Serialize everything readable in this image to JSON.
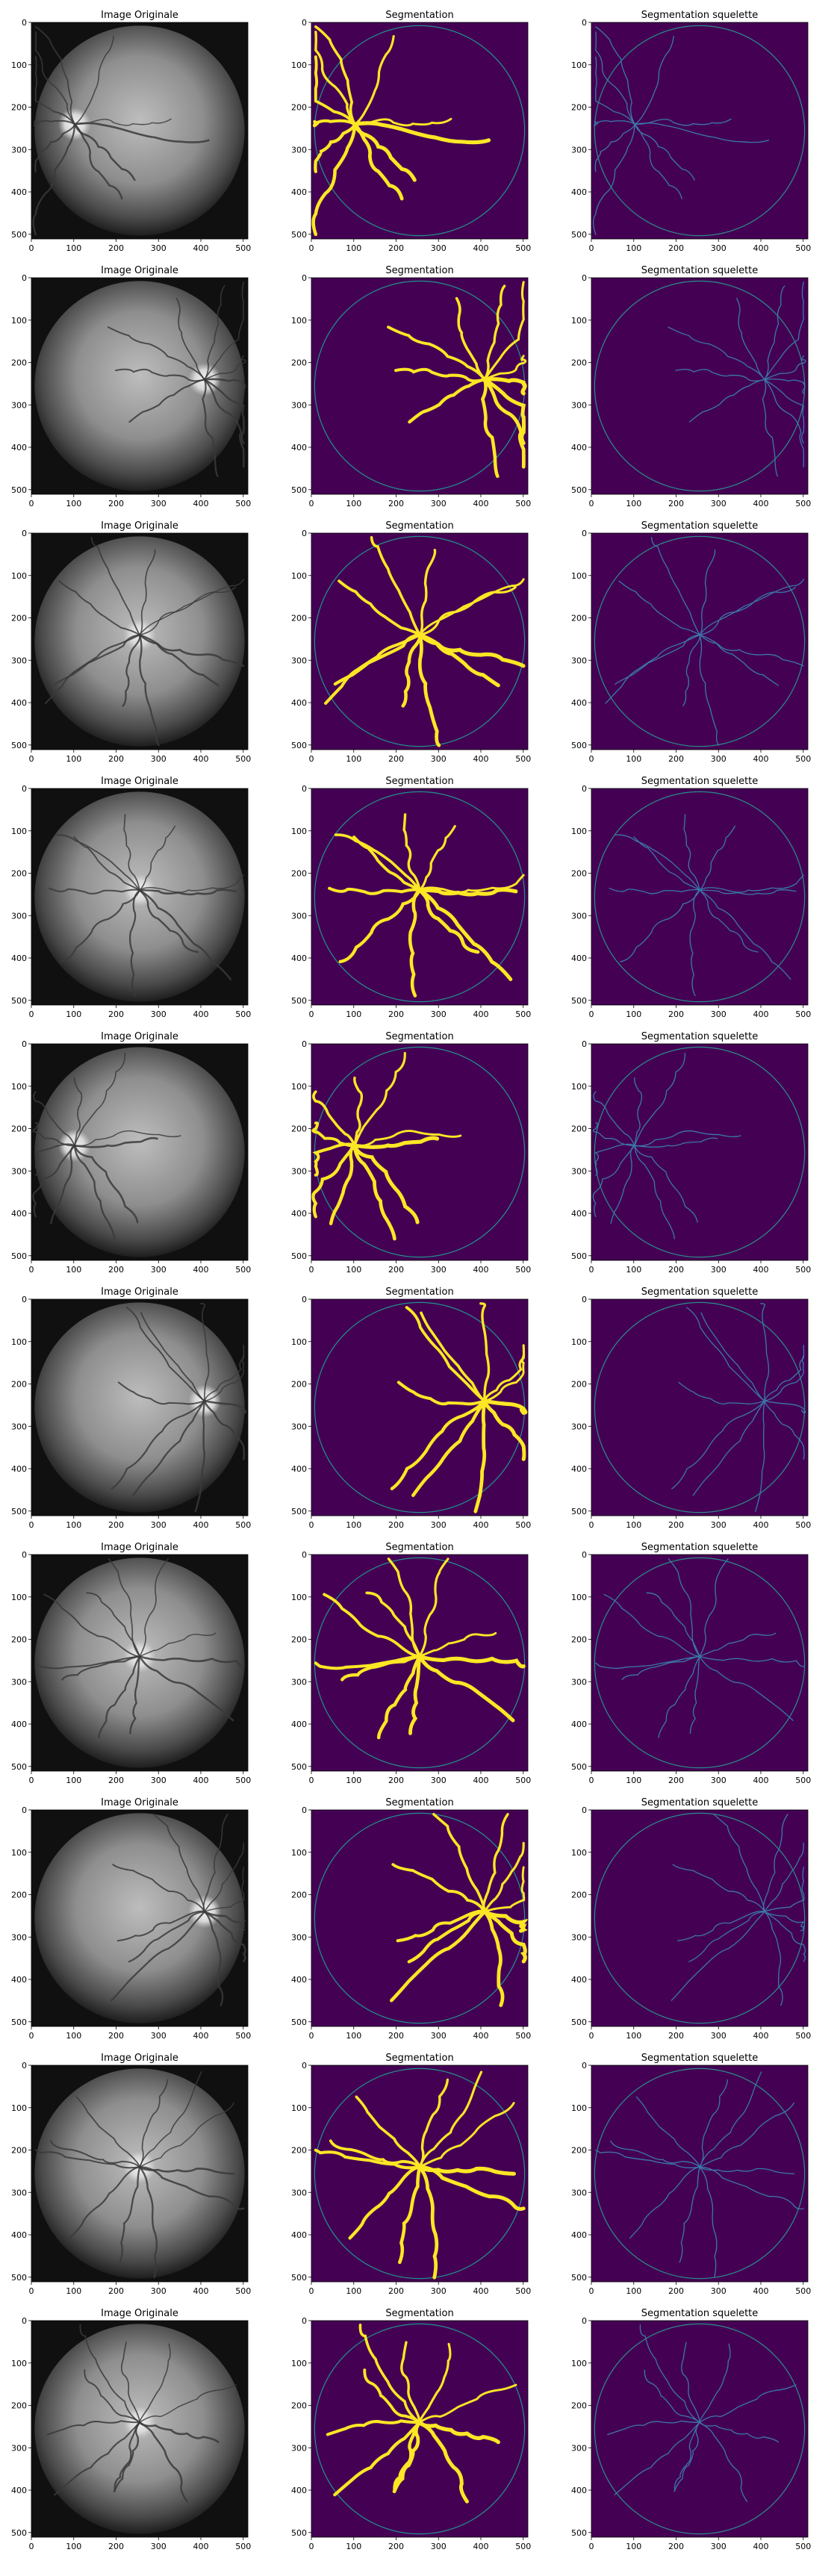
{
  "figure": {
    "rows": 10,
    "columns": [
      "original",
      "segmentation",
      "skeleton"
    ],
    "titles": {
      "original": "Image Originale",
      "segmentation": "Segmentation",
      "skeleton": "Segmentation squelette"
    },
    "x_ticks": [
      0,
      100,
      200,
      300,
      400,
      500
    ],
    "y_ticks": [
      0,
      100,
      200,
      300,
      400,
      500
    ],
    "xlim": [
      0,
      511
    ],
    "ylim": [
      511,
      0
    ],
    "colors": {
      "background": "#ffffff",
      "seg_background": "#440154",
      "seg_vessel": "#fde725",
      "seg_edge": "#21918c",
      "skeleton_line": "#3b78a8",
      "skeleton_circle": "#2a8c8a",
      "fundus_light": "#cfcfcf",
      "fundus_dark": "#101010"
    },
    "row_disc_side": [
      "left",
      "right",
      "center",
      "center",
      "left",
      "right",
      "center",
      "right",
      "center",
      "center"
    ]
  }
}
